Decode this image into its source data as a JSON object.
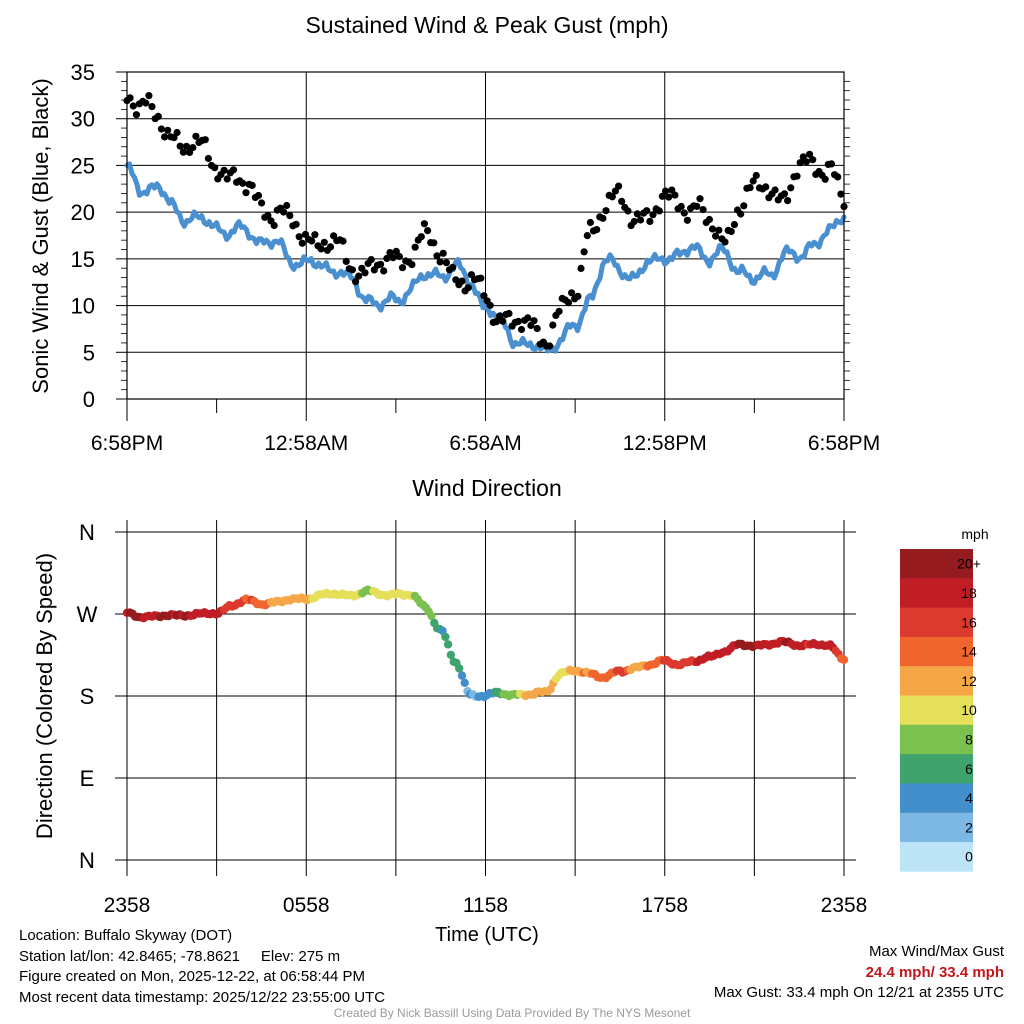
{
  "chart_data": [
    {
      "type": "scatter",
      "title": "Sustained Wind & Peak Gust (mph)",
      "ylabel": "Sonic Wind & Gust (Blue, Black)",
      "ylim": [
        0,
        35
      ],
      "yticks": [
        "0",
        "5",
        "10",
        "15",
        "20",
        "25",
        "30",
        "35"
      ],
      "xtick_labels": [
        "6:58PM",
        "12:58AM",
        "6:58AM",
        "12:58PM",
        "6:58PM"
      ],
      "x_unit": "hours since 6:58PM",
      "series": [
        {
          "name": "Sonic Wind",
          "color": "#4a90d0",
          "style": "line",
          "x": [
            0,
            0.5,
            1,
            1.5,
            2,
            2.5,
            3,
            3.5,
            4,
            4.5,
            5,
            5.5,
            6,
            6.5,
            7,
            7.5,
            8,
            8.5,
            9,
            9.5,
            10,
            10.5,
            11,
            11.5,
            12,
            12.5,
            13,
            13.5,
            14,
            14.5,
            15,
            15.5,
            16,
            16.5,
            17,
            17.5,
            18,
            18.5,
            19,
            19.5,
            20,
            20.5,
            21,
            21.5,
            22,
            22.5,
            23,
            23.5,
            24
          ],
          "values": [
            24.2,
            22.5,
            22.8,
            20.5,
            19.5,
            19,
            18.5,
            17.8,
            18,
            17,
            16.5,
            15,
            14.5,
            14.2,
            14,
            12.5,
            11,
            10,
            10.5,
            12,
            13,
            13.5,
            14,
            12.5,
            10,
            8,
            6.5,
            5.5,
            5.2,
            6.5,
            7.5,
            11,
            14.5,
            14,
            13,
            14.5,
            15.5,
            15,
            16.5,
            15,
            15.5,
            14,
            12.5,
            13.5,
            15.5,
            15,
            17,
            17.5,
            19.8
          ]
        },
        {
          "name": "Peak Gust",
          "color": "#000000",
          "style": "points",
          "x": [
            0,
            0.5,
            1,
            1.5,
            2,
            2.5,
            3,
            3.5,
            4,
            4.5,
            5,
            5.5,
            6,
            6.5,
            7,
            7.5,
            8,
            8.5,
            9,
            9.5,
            10,
            10.5,
            11,
            11.5,
            12,
            12.5,
            13,
            13.5,
            14,
            14.5,
            15,
            15.5,
            16,
            16.5,
            17,
            17.5,
            18,
            18.5,
            19,
            19.5,
            20,
            20.5,
            21,
            21.5,
            22,
            22.5,
            23,
            23.5,
            24
          ],
          "values": [
            33.4,
            31,
            30,
            28.5,
            27,
            26.5,
            25.5,
            23.5,
            22.5,
            21,
            20,
            18.5,
            17.5,
            17,
            16,
            14.5,
            14,
            14,
            15,
            16,
            17,
            15.5,
            13.5,
            12,
            11,
            9,
            8,
            7.5,
            7,
            9,
            11,
            18.5,
            20.5,
            21,
            20,
            19.5,
            21,
            21.5,
            20.5,
            18.5,
            17,
            21,
            22,
            23,
            21.5,
            24.5,
            25,
            25.5,
            20.5
          ]
        }
      ]
    },
    {
      "type": "scatter",
      "title": "Wind Direction",
      "ylabel": "Direction (Colored By Speed)",
      "xlabel": "Time (UTC)",
      "ylim": [
        0,
        360
      ],
      "yticks": [
        "N",
        "E",
        "S",
        "W",
        "N"
      ],
      "xtick_labels": [
        "2358",
        "0558",
        "1158",
        "1758",
        "2358"
      ],
      "x_unit": "hours since 2358 UTC",
      "x": [
        0,
        0.5,
        1,
        1.5,
        2,
        2.5,
        3,
        3.5,
        4,
        4.5,
        5,
        5.5,
        6,
        6.5,
        7,
        7.5,
        8,
        8.5,
        9,
        9.5,
        10,
        10.5,
        11,
        11.5,
        12,
        12.5,
        13,
        13.5,
        14,
        14.5,
        15,
        15.5,
        16,
        16.5,
        17,
        17.5,
        18,
        18.5,
        19,
        19.5,
        20,
        20.5,
        21,
        21.5,
        22,
        22.5,
        23,
        23.5,
        24
      ],
      "direction_deg": [
        270,
        268,
        267,
        268,
        270,
        269,
        271,
        280,
        284,
        282,
        283,
        285,
        288,
        290,
        292,
        291,
        294,
        292,
        292,
        290,
        278,
        252,
        216,
        182,
        180,
        183,
        182,
        181,
        184,
        205,
        207,
        205,
        201,
        206,
        212,
        214,
        218,
        216,
        217,
        223,
        230,
        235,
        236,
        237,
        238,
        237,
        236,
        235,
        222
      ],
      "speed_mph": [
        20,
        20,
        20,
        20,
        20,
        19,
        19,
        17,
        16,
        15,
        14,
        13,
        12,
        11,
        11,
        12,
        10,
        11,
        11,
        10,
        8,
        7,
        6,
        4,
        5,
        7,
        10,
        13,
        13,
        12,
        13,
        14,
        15,
        16,
        13,
        15,
        16,
        17,
        18,
        19,
        19,
        20,
        20,
        19,
        20,
        19,
        19,
        19,
        15
      ]
    }
  ],
  "colorbar": {
    "title": "mph",
    "labels": [
      "20+",
      "18",
      "16",
      "14",
      "12",
      "10",
      "8",
      "6",
      "4",
      "2",
      "0"
    ],
    "colors": [
      "#951b1e",
      "#c01e24",
      "#dc3a2e",
      "#f0652e",
      "#f5a748",
      "#e6df5a",
      "#7bc14f",
      "#3fa36d",
      "#438fcb",
      "#7db8e5",
      "#bde3f7"
    ]
  },
  "station": {
    "location": "Location: Buffalo Skyway (DOT)",
    "latlon": "Station lat/lon: 42.8465; -78.8621",
    "elev": "Elev: 275 m",
    "created": "Figure created on Mon, 2025-12-22, at 06:58:44 PM",
    "recent": "Most recent data timestamp: 2025/12/22 23:55:00 UTC"
  },
  "summary": {
    "label": "Max Wind/Max Gust",
    "values": "24.4 mph/ 33.4 mph",
    "max_gust_note": "Max Gust: 33.4 mph On 12/21 at 2355 UTC"
  },
  "credit": "Created By Nick Bassill Using Data Provided By The NYS Mesonet"
}
